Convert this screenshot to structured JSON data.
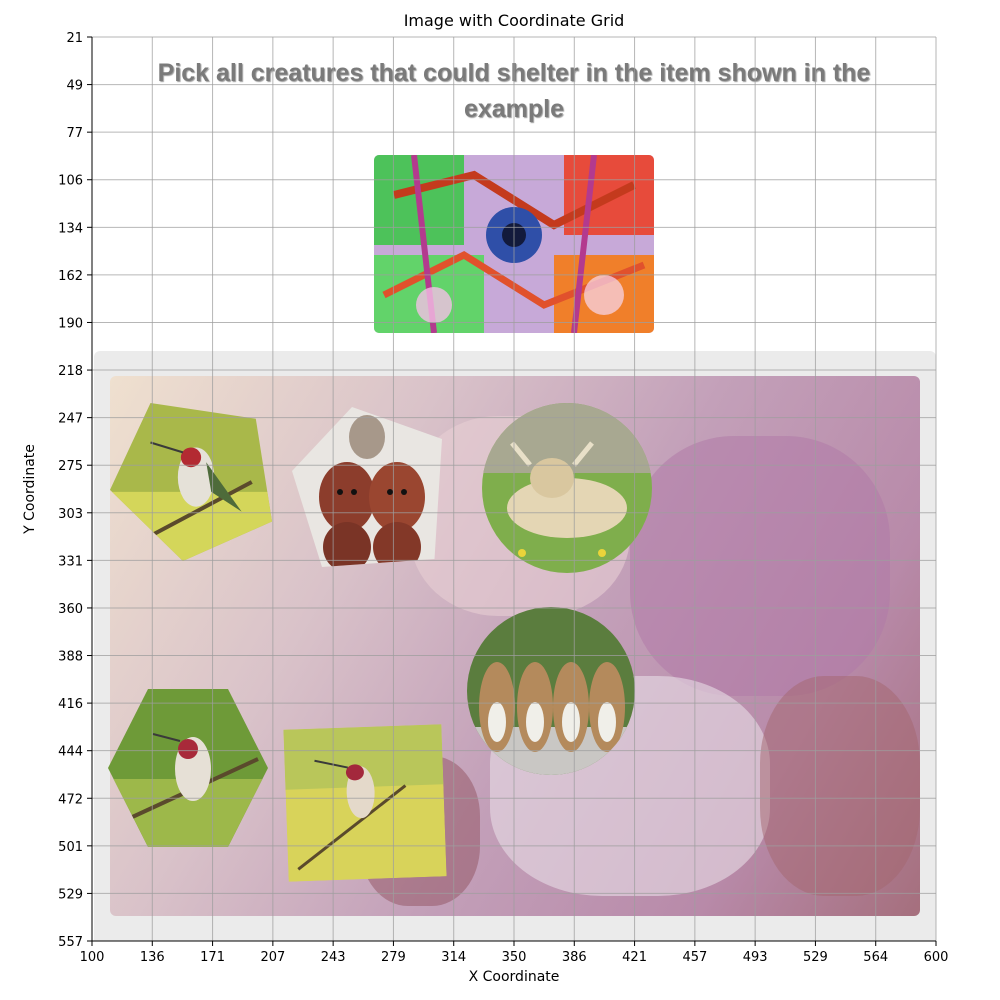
{
  "figure": {
    "title": "Image with Coordinate Grid",
    "xlabel": "X Coordinate",
    "ylabel": "Y Coordinate",
    "x_ticks": [
      "100",
      "136",
      "171",
      "207",
      "243",
      "279",
      "314",
      "350",
      "386",
      "421",
      "457",
      "493",
      "529",
      "564",
      "600"
    ],
    "y_ticks": [
      "21",
      "49",
      "77",
      "106",
      "134",
      "162",
      "190",
      "218",
      "247",
      "275",
      "303",
      "331",
      "360",
      "388",
      "416",
      "444",
      "472",
      "501",
      "529",
      "557"
    ]
  },
  "captcha": {
    "prompt": "Pick all creatures that could shelter in the item shown in the example",
    "example_image": "colorful-birdhouse-example",
    "options": [
      {
        "id": "hummingbird-hexagon-top",
        "subject": "hummingbird"
      },
      {
        "id": "puppies",
        "subject": "puppies"
      },
      {
        "id": "cow-circle",
        "subject": "cow"
      },
      {
        "id": "kittens-circle",
        "subject": "kittens"
      },
      {
        "id": "hummingbird-hexagon-bottom",
        "subject": "hummingbird"
      },
      {
        "id": "hummingbird-square",
        "subject": "hummingbird"
      }
    ]
  },
  "colors": {
    "prompt_text": "#7a7a7a",
    "panel_bg": "#ebebeb",
    "grid": "#9e9e9e"
  }
}
